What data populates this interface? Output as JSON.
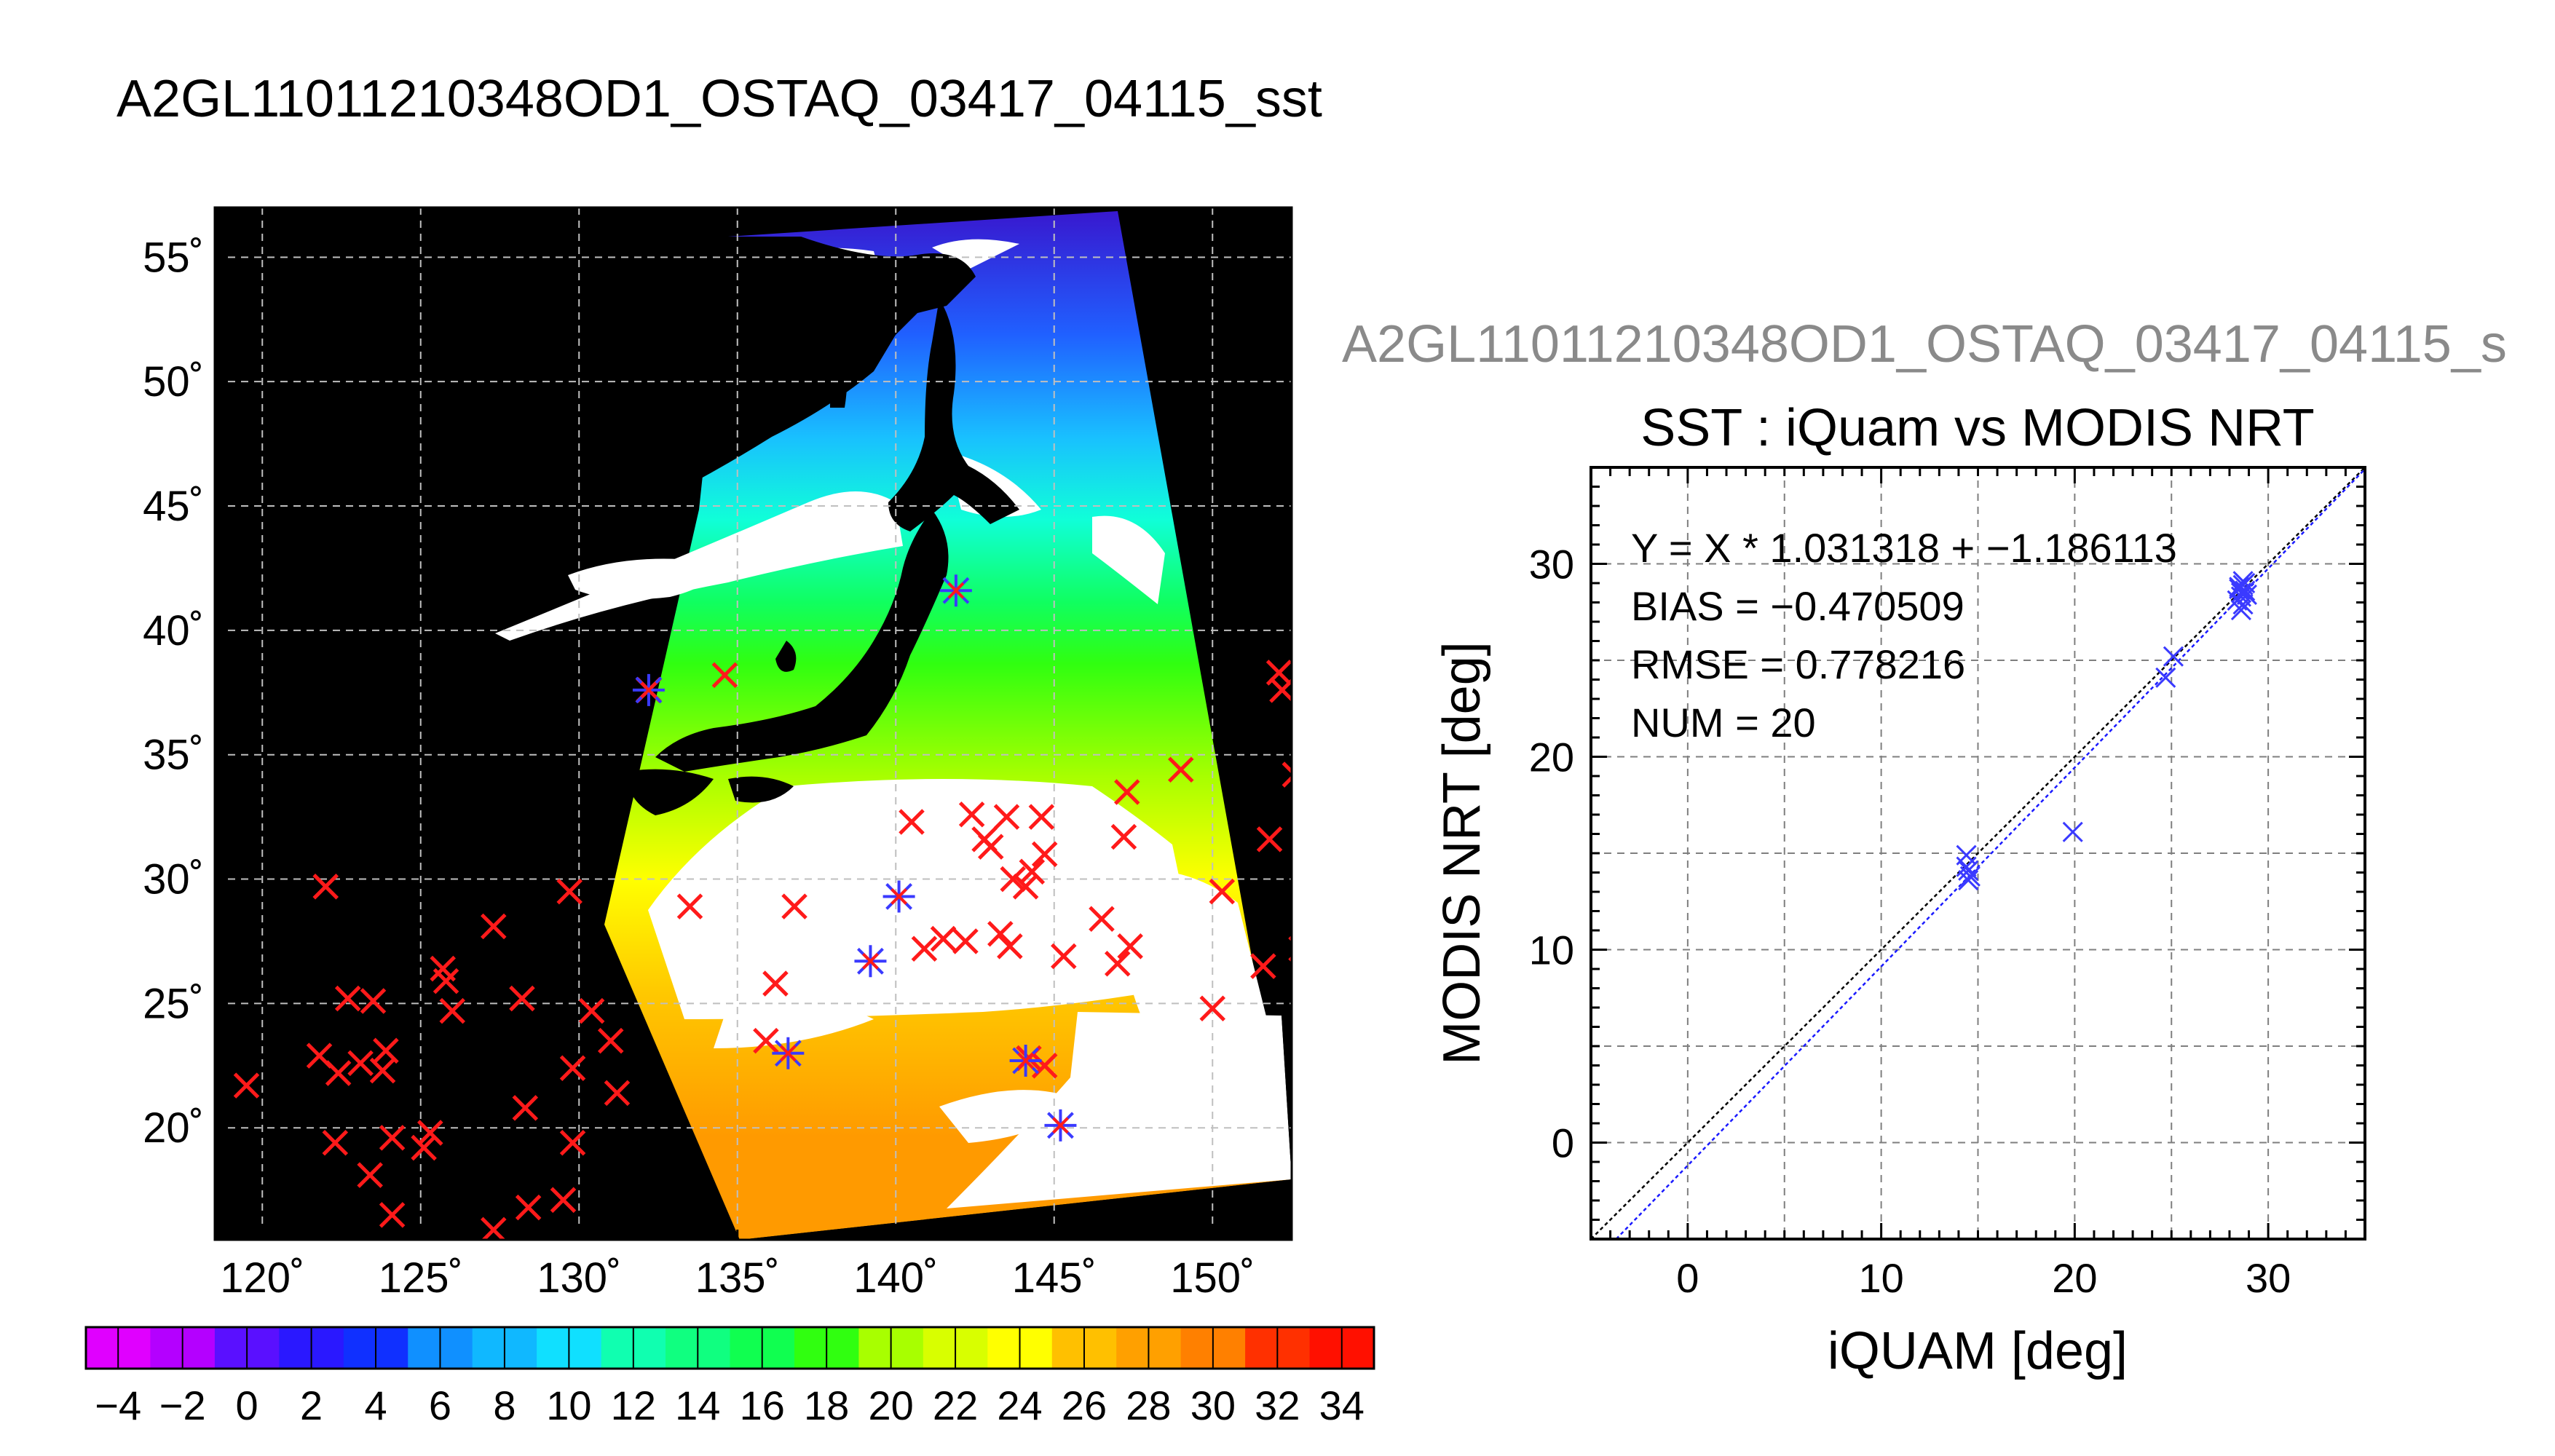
{
  "title": "A2GL11011210348OD1_OSTAQ_03417_04115_sst",
  "subtitle": "A2GL11011210348OD1_OSTAQ_03417_04115_s",
  "colors": {
    "map_land": "#000000",
    "cloud": "#ffffff",
    "iquam_marker": "#ff1a1a",
    "match_marker": "#3a3aff",
    "fit_line": "#1a1aff",
    "one_to_one_line": "#000000"
  },
  "chart_data": [
    {
      "type": "map",
      "lon_ticks": [
        "120˚",
        "125˚",
        "130˚",
        "135˚",
        "140˚",
        "145˚",
        "150˚"
      ],
      "lat_ticks": [
        "55˚",
        "50˚",
        "45˚",
        "40˚",
        "35˚",
        "30˚",
        "25˚",
        "20˚"
      ],
      "lon_range": [
        118.5,
        152.5
      ],
      "lat_range": [
        15.5,
        57
      ],
      "grid": true,
      "iquam_points_lonlat": [
        [
          119.5,
          21.7
        ],
        [
          122.0,
          29.7
        ],
        [
          121.8,
          22.9
        ],
        [
          122.4,
          22.2
        ],
        [
          122.7,
          25.2
        ],
        [
          123.1,
          22.6
        ],
        [
          122.3,
          19.4
        ],
        [
          123.5,
          25.1
        ],
        [
          123.8,
          22.3
        ],
        [
          123.4,
          18.1
        ],
        [
          124.1,
          19.6
        ],
        [
          124.1,
          16.5
        ],
        [
          123.9,
          23.1
        ],
        [
          125.3,
          19.8
        ],
        [
          125.1,
          19.2
        ],
        [
          125.8,
          25.9
        ],
        [
          125.7,
          26.4
        ],
        [
          126.0,
          24.7
        ],
        [
          127.3,
          28.1
        ],
        [
          128.2,
          25.2
        ],
        [
          128.3,
          20.8
        ],
        [
          127.3,
          15.9
        ],
        [
          128.4,
          16.8
        ],
        [
          129.5,
          17.1
        ],
        [
          129.7,
          29.5
        ],
        [
          129.8,
          22.4
        ],
        [
          129.8,
          19.4
        ],
        [
          130.4,
          24.7
        ],
        [
          131.0,
          23.5
        ],
        [
          131.2,
          21.4
        ],
        [
          132.2,
          37.6
        ],
        [
          134.6,
          38.2
        ],
        [
          133.5,
          28.9
        ],
        [
          135.9,
          23.5
        ],
        [
          136.2,
          25.8
        ],
        [
          136.8,
          28.9
        ],
        [
          140.5,
          32.3
        ],
        [
          140.9,
          27.2
        ],
        [
          141.5,
          27.6
        ],
        [
          142.2,
          27.5
        ],
        [
          142.4,
          32.6
        ],
        [
          142.8,
          31.6
        ],
        [
          143.0,
          31.3
        ],
        [
          143.3,
          27.8
        ],
        [
          143.6,
          27.3
        ],
        [
          143.5,
          32.5
        ],
        [
          143.7,
          30.0
        ],
        [
          144.1,
          29.7
        ],
        [
          144.3,
          30.3
        ],
        [
          144.6,
          32.5
        ],
        [
          144.7,
          31.0
        ],
        [
          144.2,
          22.8
        ],
        [
          144.7,
          22.5
        ],
        [
          145.3,
          26.9
        ],
        [
          146.5,
          28.4
        ],
        [
          147.2,
          31.7
        ],
        [
          147.3,
          33.5
        ],
        [
          147.0,
          26.6
        ],
        [
          147.4,
          27.3
        ],
        [
          149.0,
          34.4
        ],
        [
          150.0,
          24.8
        ],
        [
          150.3,
          29.5
        ],
        [
          151.6,
          26.5
        ],
        [
          151.8,
          31.6
        ],
        [
          152.1,
          38.3
        ],
        [
          152.2,
          37.6
        ],
        [
          152.6,
          34.2
        ],
        [
          152.8,
          27.2
        ]
      ],
      "matchup_points_lonlat": [
        [
          132.2,
          37.6
        ],
        [
          141.9,
          41.6
        ],
        [
          136.6,
          23.0
        ],
        [
          139.2,
          26.7
        ],
        [
          140.1,
          29.3
        ],
        [
          144.1,
          22.7
        ],
        [
          145.2,
          20.1
        ]
      ],
      "colorbar": {
        "ticks": [
          "−4",
          "−2",
          "0",
          "2",
          "4",
          "6",
          "8",
          "10",
          "12",
          "14",
          "16",
          "18",
          "20",
          "22",
          "24",
          "26",
          "28",
          "30",
          "32",
          "34"
        ],
        "range": [
          -5,
          35
        ],
        "step": 2
      }
    },
    {
      "type": "scatter",
      "title": "SST : iQuam vs MODIS NRT",
      "xlabel": "iQUAM [deg]",
      "ylabel": "MODIS NRT [deg]",
      "xlim": [
        -5,
        35
      ],
      "ylim": [
        -5,
        35
      ],
      "x_ticks": [
        "0",
        "10",
        "20",
        "30"
      ],
      "y_ticks": [
        "0",
        "10",
        "20",
        "30"
      ],
      "grid": true,
      "annotations": [
        "Y = X * 1.031318 + −1.186113",
        "BIAS = −0.470509",
        "RMSE = 0.778216",
        "NUM = 20"
      ],
      "fit": {
        "slope": 1.031318,
        "intercept": -1.186113
      },
      "points": [
        [
          14.4,
          14.9
        ],
        [
          14.4,
          14.3
        ],
        [
          14.6,
          13.8
        ],
        [
          14.5,
          13.6
        ],
        [
          19.9,
          16.1
        ],
        [
          24.7,
          24.1
        ],
        [
          25.1,
          25.2
        ],
        [
          28.5,
          28.8
        ],
        [
          28.7,
          29.1
        ],
        [
          28.6,
          28.3
        ],
        [
          28.8,
          28.6
        ],
        [
          28.6,
          27.6
        ],
        [
          28.4,
          28.1
        ],
        [
          28.7,
          28.9
        ],
        [
          28.9,
          28.4
        ],
        [
          28.5,
          28.7
        ],
        [
          28.8,
          29.0
        ],
        [
          28.6,
          28.5
        ],
        [
          14.5,
          14.1
        ],
        [
          28.7,
          27.9
        ]
      ]
    }
  ]
}
